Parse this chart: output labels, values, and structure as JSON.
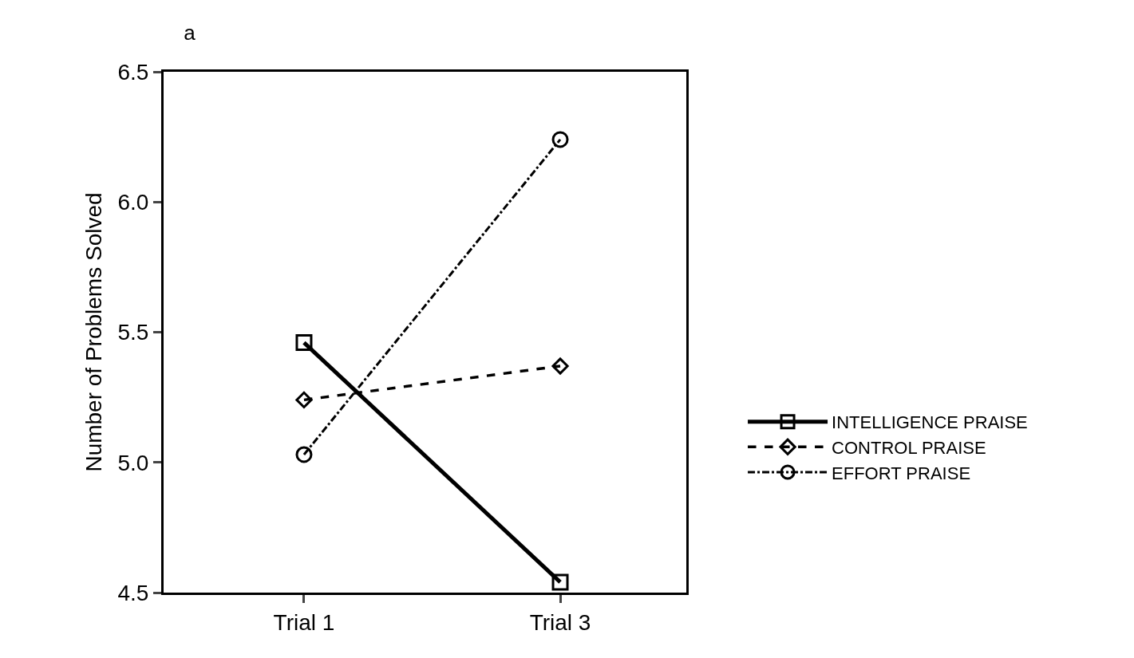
{
  "chart_data": {
    "type": "line",
    "title": "a",
    "ylabel": "Number of Problems Solved",
    "categories": [
      "Trial 1",
      "Trial 3"
    ],
    "series": [
      {
        "name": "INTELLIGENCE PRAISE",
        "color": "#000000",
        "values": [
          5.46,
          4.54
        ],
        "marker": "square",
        "line_style": "solid"
      },
      {
        "name": "CONTROL PRAISE",
        "color": "#000000",
        "values": [
          5.24,
          5.37
        ],
        "marker": "diamond",
        "line_style": "dashed"
      },
      {
        "name": "EFFORT PRAISE",
        "color": "#000000",
        "values": [
          5.03,
          6.24
        ],
        "marker": "circle",
        "line_style": "dashdot"
      }
    ],
    "ylim": [
      4.5,
      6.5
    ],
    "yticks": [
      {
        "value": 4.5,
        "label": "4.5"
      },
      {
        "value": 5,
        "label": "5.0"
      },
      {
        "value": 5.5,
        "label": "5.5"
      },
      {
        "value": 6,
        "label": "6.0"
      },
      {
        "value": 6.5,
        "label": "6.5"
      }
    ],
    "grid": false,
    "legend": "right"
  }
}
